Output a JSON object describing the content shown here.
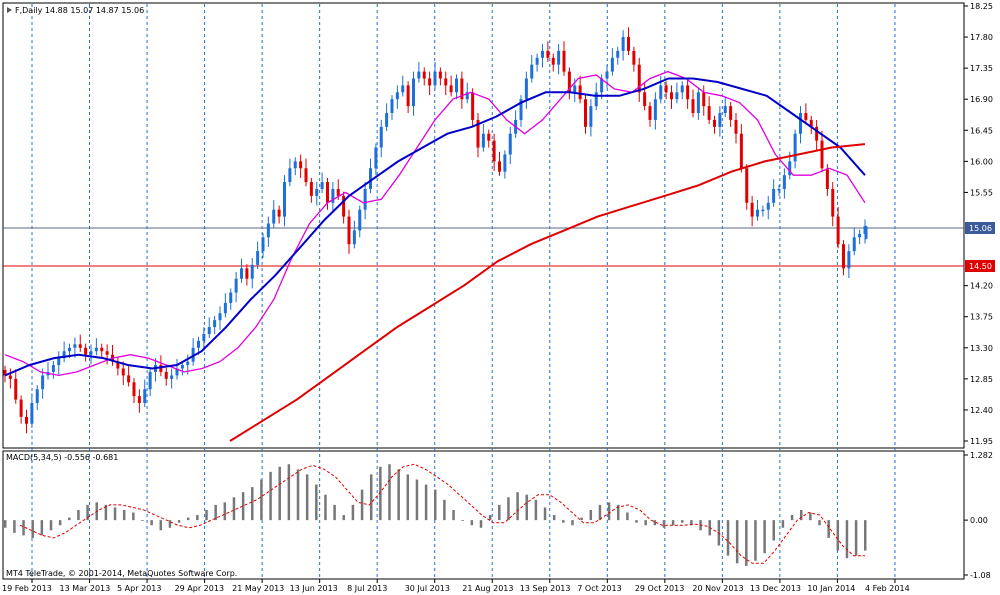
{
  "header": {
    "symbol_label": "F,Daily  14.88 15.07 14.87 15.06"
  },
  "footer": {
    "copyright": "MT4 TeleTrade, © 2001-2014, MetaQuotes Software Corp."
  },
  "colors": {
    "background": "#ffffff",
    "frame": "#000000",
    "grid": "#1e6fd9",
    "bull_candle": "#1e6fd9",
    "bear_candle": "#e00000",
    "ma_fast": "#e000e0",
    "ma_mid": "#0000c8",
    "ma_slow": "#e00000",
    "macd_hist": "#777777",
    "macd_signal": "#e00000",
    "price_line": "#5a6a8a",
    "support_line": "#e00000",
    "tag_current_bg": "#3a5a9a",
    "tag_support_bg": "#e00000"
  },
  "chart_data": [
    {
      "type": "candlestick",
      "x_ticks": [
        "19 Feb 2013",
        "13 Mar 2013",
        "5 Apr 2013",
        "29 Apr 2013",
        "21 May 2013",
        "13 Jun 2013",
        "8 Jul 2013",
        "30 Jul 2013",
        "21 Aug 2013",
        "13 Sep 2013",
        "7 Oct 2013",
        "29 Oct 2013",
        "20 Nov 2013",
        "13 Dec 2013",
        "10 Jan 2014",
        "4 Feb 2014"
      ],
      "y_ticks": [
        "18.25",
        "17.80",
        "17.35",
        "16.90",
        "16.45",
        "16.00",
        "15.55",
        "14.20",
        "13.75",
        "13.30",
        "12.85",
        "12.40",
        "11.95"
      ],
      "ylim": [
        11.95,
        18.25
      ],
      "last_ohlc": {
        "open": 14.88,
        "high": 15.07,
        "low": 14.87,
        "close": 15.06
      },
      "current_price_tag": "15.06",
      "horizontal_line_tag": "14.50",
      "close_series": [
        12.9,
        12.85,
        12.55,
        12.3,
        12.2,
        12.5,
        12.7,
        12.9,
        12.95,
        13.05,
        13.15,
        13.25,
        13.3,
        13.35,
        13.3,
        13.2,
        13.25,
        13.3,
        13.25,
        13.2,
        13.1,
        13.0,
        12.9,
        12.8,
        12.6,
        12.5,
        12.7,
        12.95,
        13.05,
        12.95,
        12.85,
        12.9,
        13.0,
        13.05,
        13.1,
        13.3,
        13.4,
        13.5,
        13.6,
        13.7,
        13.8,
        13.95,
        14.1,
        14.3,
        14.45,
        14.3,
        14.5,
        14.7,
        14.9,
        15.1,
        15.3,
        15.2,
        15.7,
        15.9,
        16.0,
        15.9,
        15.7,
        15.5,
        15.6,
        15.7,
        15.4,
        15.6,
        15.5,
        15.2,
        14.8,
        15.0,
        15.3,
        15.6,
        15.9,
        16.2,
        16.5,
        16.7,
        16.9,
        17.0,
        17.1,
        16.8,
        17.2,
        17.3,
        17.2,
        17.1,
        17.3,
        17.2,
        17.1,
        17.0,
        17.2,
        16.9,
        17.0,
        16.6,
        16.2,
        16.4,
        16.3,
        16.0,
        15.85,
        16.1,
        16.4,
        16.6,
        16.9,
        17.2,
        17.4,
        17.5,
        17.6,
        17.5,
        17.4,
        17.6,
        17.3,
        17.0,
        17.1,
        16.9,
        16.5,
        16.8,
        17.0,
        17.2,
        17.3,
        17.5,
        17.6,
        17.8,
        17.6,
        17.4,
        17.0,
        16.8,
        16.6,
        16.9,
        17.1,
        17.0,
        16.9,
        17.0,
        17.1,
        16.9,
        16.7,
        17.0,
        16.8,
        16.6,
        16.5,
        16.7,
        16.8,
        16.6,
        16.4,
        15.9,
        15.4,
        15.2,
        15.3,
        15.3,
        15.4,
        15.6,
        15.6,
        15.8,
        16.0,
        16.4,
        16.7,
        16.6,
        16.5,
        16.3,
        15.9,
        15.6,
        15.2,
        14.8,
        14.45,
        14.7,
        14.9,
        14.95,
        15.06
      ],
      "moving_averages": [
        {
          "color_key": "ma_fast",
          "values": [
            13.2,
            13.1,
            12.95,
            12.9,
            12.95,
            13.05,
            13.15,
            13.2,
            13.15,
            13.05,
            12.95,
            13.0,
            13.1,
            13.3,
            13.6,
            14.0,
            14.6,
            15.1,
            15.4,
            15.55,
            15.4,
            15.45,
            15.8,
            16.2,
            16.6,
            16.9,
            17.0,
            16.9,
            16.6,
            16.4,
            16.6,
            16.9,
            17.2,
            17.25,
            17.05,
            17.0,
            17.2,
            17.3,
            17.2,
            17.0,
            16.95,
            16.85,
            16.6,
            16.1,
            15.8,
            15.8,
            15.9,
            15.8,
            15.4
          ]
        },
        {
          "color_key": "ma_mid",
          "values": [
            12.9,
            13.05,
            13.15,
            13.2,
            13.15,
            13.05,
            13.0,
            13.05,
            13.25,
            13.6,
            14.0,
            14.35,
            14.75,
            15.15,
            15.5,
            15.75,
            16.0,
            16.2,
            16.4,
            16.5,
            16.65,
            16.85,
            17.0,
            17.0,
            16.95,
            16.95,
            17.05,
            17.2,
            17.2,
            17.15,
            17.05,
            16.95,
            16.7,
            16.45,
            16.2,
            15.8
          ]
        },
        {
          "color_key": "ma_slow",
          "values": [
            11.95,
            12.25,
            12.55,
            12.9,
            13.25,
            13.6,
            13.9,
            14.2,
            14.55,
            14.8,
            15.0,
            15.2,
            15.35,
            15.5,
            15.65,
            15.85,
            16.0,
            16.1,
            16.2,
            16.25
          ]
        }
      ]
    },
    {
      "type": "bar",
      "title": "MACD(5,34,5) -0.556 -0.681",
      "y_ticks": [
        "1.282",
        "0.00",
        "-1.08"
      ],
      "ylim": [
        -1.08,
        1.282
      ],
      "histogram": [
        -0.15,
        -0.25,
        -0.3,
        -0.35,
        -0.3,
        -0.2,
        -0.1,
        0.05,
        0.2,
        0.3,
        0.35,
        0.3,
        0.25,
        0.2,
        0.15,
        0.0,
        -0.1,
        -0.2,
        -0.15,
        -0.05,
        0.05,
        0.1,
        0.2,
        0.3,
        0.35,
        0.45,
        0.55,
        0.65,
        0.8,
        0.95,
        1.05,
        1.1,
        1.0,
        0.9,
        0.7,
        0.5,
        0.3,
        0.1,
        0.3,
        0.6,
        0.9,
        1.05,
        1.1,
        1.0,
        0.9,
        0.8,
        0.7,
        0.6,
        0.4,
        0.2,
        0.0,
        -0.1,
        -0.15,
        0.1,
        0.3,
        0.45,
        0.55,
        0.5,
        0.4,
        0.25,
        0.1,
        -0.05,
        -0.1,
        0.05,
        0.2,
        0.3,
        0.35,
        0.3,
        0.15,
        -0.05,
        -0.1,
        -0.1,
        -0.15,
        -0.1,
        -0.05,
        -0.1,
        -0.2,
        -0.3,
        -0.5,
        -0.7,
        -0.85,
        -0.9,
        -0.8,
        -0.65,
        -0.4,
        -0.15,
        0.1,
        0.2,
        0.15,
        -0.1,
        -0.35,
        -0.6,
        -0.75,
        -0.7,
        -0.6
      ],
      "signal": [
        -0.1,
        -0.2,
        -0.3,
        -0.35,
        -0.25,
        -0.1,
        0.05,
        0.2,
        0.3,
        0.3,
        0.25,
        0.2,
        0.1,
        0.0,
        -0.1,
        -0.15,
        -0.1,
        0.0,
        0.1,
        0.2,
        0.3,
        0.4,
        0.55,
        0.7,
        0.85,
        1.0,
        1.08,
        1.0,
        0.85,
        0.6,
        0.35,
        0.3,
        0.55,
        0.85,
        1.05,
        1.1,
        1.0,
        0.85,
        0.7,
        0.5,
        0.3,
        0.1,
        -0.05,
        -0.05,
        0.15,
        0.35,
        0.5,
        0.5,
        0.35,
        0.15,
        -0.05,
        -0.05,
        0.1,
        0.25,
        0.3,
        0.2,
        0.0,
        -0.1,
        -0.1,
        -0.1,
        -0.08,
        -0.12,
        -0.25,
        -0.45,
        -0.7,
        -0.85,
        -0.85,
        -0.6,
        -0.3,
        0.0,
        0.15,
        0.1,
        -0.2,
        -0.5,
        -0.7,
        -0.7
      ]
    }
  ]
}
